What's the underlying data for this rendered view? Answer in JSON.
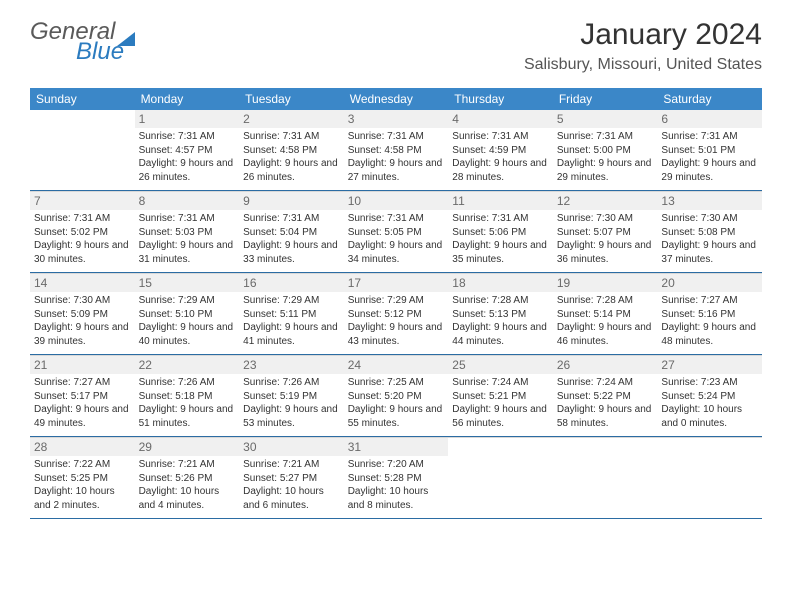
{
  "logo": {
    "general": "General",
    "blue": "Blue"
  },
  "title": "January 2024",
  "location": "Salisbury, Missouri, United States",
  "colors": {
    "header_bg": "#3b87c8",
    "header_fg": "#ffffff",
    "border": "#2b6ca3",
    "shaded": "#f0f0f0",
    "logo_blue": "#2b7bbf",
    "logo_gray": "#5a5a5a"
  },
  "day_names": [
    "Sunday",
    "Monday",
    "Tuesday",
    "Wednesday",
    "Thursday",
    "Friday",
    "Saturday"
  ],
  "weeks": [
    [
      {
        "day": "",
        "sunrise": "",
        "sunset": "",
        "daylight": ""
      },
      {
        "day": "1",
        "sunrise": "Sunrise: 7:31 AM",
        "sunset": "Sunset: 4:57 PM",
        "daylight": "Daylight: 9 hours and 26 minutes."
      },
      {
        "day": "2",
        "sunrise": "Sunrise: 7:31 AM",
        "sunset": "Sunset: 4:58 PM",
        "daylight": "Daylight: 9 hours and 26 minutes."
      },
      {
        "day": "3",
        "sunrise": "Sunrise: 7:31 AM",
        "sunset": "Sunset: 4:58 PM",
        "daylight": "Daylight: 9 hours and 27 minutes."
      },
      {
        "day": "4",
        "sunrise": "Sunrise: 7:31 AM",
        "sunset": "Sunset: 4:59 PM",
        "daylight": "Daylight: 9 hours and 28 minutes."
      },
      {
        "day": "5",
        "sunrise": "Sunrise: 7:31 AM",
        "sunset": "Sunset: 5:00 PM",
        "daylight": "Daylight: 9 hours and 29 minutes."
      },
      {
        "day": "6",
        "sunrise": "Sunrise: 7:31 AM",
        "sunset": "Sunset: 5:01 PM",
        "daylight": "Daylight: 9 hours and 29 minutes."
      }
    ],
    [
      {
        "day": "7",
        "sunrise": "Sunrise: 7:31 AM",
        "sunset": "Sunset: 5:02 PM",
        "daylight": "Daylight: 9 hours and 30 minutes."
      },
      {
        "day": "8",
        "sunrise": "Sunrise: 7:31 AM",
        "sunset": "Sunset: 5:03 PM",
        "daylight": "Daylight: 9 hours and 31 minutes."
      },
      {
        "day": "9",
        "sunrise": "Sunrise: 7:31 AM",
        "sunset": "Sunset: 5:04 PM",
        "daylight": "Daylight: 9 hours and 33 minutes."
      },
      {
        "day": "10",
        "sunrise": "Sunrise: 7:31 AM",
        "sunset": "Sunset: 5:05 PM",
        "daylight": "Daylight: 9 hours and 34 minutes."
      },
      {
        "day": "11",
        "sunrise": "Sunrise: 7:31 AM",
        "sunset": "Sunset: 5:06 PM",
        "daylight": "Daylight: 9 hours and 35 minutes."
      },
      {
        "day": "12",
        "sunrise": "Sunrise: 7:30 AM",
        "sunset": "Sunset: 5:07 PM",
        "daylight": "Daylight: 9 hours and 36 minutes."
      },
      {
        "day": "13",
        "sunrise": "Sunrise: 7:30 AM",
        "sunset": "Sunset: 5:08 PM",
        "daylight": "Daylight: 9 hours and 37 minutes."
      }
    ],
    [
      {
        "day": "14",
        "sunrise": "Sunrise: 7:30 AM",
        "sunset": "Sunset: 5:09 PM",
        "daylight": "Daylight: 9 hours and 39 minutes."
      },
      {
        "day": "15",
        "sunrise": "Sunrise: 7:29 AM",
        "sunset": "Sunset: 5:10 PM",
        "daylight": "Daylight: 9 hours and 40 minutes."
      },
      {
        "day": "16",
        "sunrise": "Sunrise: 7:29 AM",
        "sunset": "Sunset: 5:11 PM",
        "daylight": "Daylight: 9 hours and 41 minutes."
      },
      {
        "day": "17",
        "sunrise": "Sunrise: 7:29 AM",
        "sunset": "Sunset: 5:12 PM",
        "daylight": "Daylight: 9 hours and 43 minutes."
      },
      {
        "day": "18",
        "sunrise": "Sunrise: 7:28 AM",
        "sunset": "Sunset: 5:13 PM",
        "daylight": "Daylight: 9 hours and 44 minutes."
      },
      {
        "day": "19",
        "sunrise": "Sunrise: 7:28 AM",
        "sunset": "Sunset: 5:14 PM",
        "daylight": "Daylight: 9 hours and 46 minutes."
      },
      {
        "day": "20",
        "sunrise": "Sunrise: 7:27 AM",
        "sunset": "Sunset: 5:16 PM",
        "daylight": "Daylight: 9 hours and 48 minutes."
      }
    ],
    [
      {
        "day": "21",
        "sunrise": "Sunrise: 7:27 AM",
        "sunset": "Sunset: 5:17 PM",
        "daylight": "Daylight: 9 hours and 49 minutes."
      },
      {
        "day": "22",
        "sunrise": "Sunrise: 7:26 AM",
        "sunset": "Sunset: 5:18 PM",
        "daylight": "Daylight: 9 hours and 51 minutes."
      },
      {
        "day": "23",
        "sunrise": "Sunrise: 7:26 AM",
        "sunset": "Sunset: 5:19 PM",
        "daylight": "Daylight: 9 hours and 53 minutes."
      },
      {
        "day": "24",
        "sunrise": "Sunrise: 7:25 AM",
        "sunset": "Sunset: 5:20 PM",
        "daylight": "Daylight: 9 hours and 55 minutes."
      },
      {
        "day": "25",
        "sunrise": "Sunrise: 7:24 AM",
        "sunset": "Sunset: 5:21 PM",
        "daylight": "Daylight: 9 hours and 56 minutes."
      },
      {
        "day": "26",
        "sunrise": "Sunrise: 7:24 AM",
        "sunset": "Sunset: 5:22 PM",
        "daylight": "Daylight: 9 hours and 58 minutes."
      },
      {
        "day": "27",
        "sunrise": "Sunrise: 7:23 AM",
        "sunset": "Sunset: 5:24 PM",
        "daylight": "Daylight: 10 hours and 0 minutes."
      }
    ],
    [
      {
        "day": "28",
        "sunrise": "Sunrise: 7:22 AM",
        "sunset": "Sunset: 5:25 PM",
        "daylight": "Daylight: 10 hours and 2 minutes."
      },
      {
        "day": "29",
        "sunrise": "Sunrise: 7:21 AM",
        "sunset": "Sunset: 5:26 PM",
        "daylight": "Daylight: 10 hours and 4 minutes."
      },
      {
        "day": "30",
        "sunrise": "Sunrise: 7:21 AM",
        "sunset": "Sunset: 5:27 PM",
        "daylight": "Daylight: 10 hours and 6 minutes."
      },
      {
        "day": "31",
        "sunrise": "Sunrise: 7:20 AM",
        "sunset": "Sunset: 5:28 PM",
        "daylight": "Daylight: 10 hours and 8 minutes."
      },
      {
        "day": "",
        "sunrise": "",
        "sunset": "",
        "daylight": ""
      },
      {
        "day": "",
        "sunrise": "",
        "sunset": "",
        "daylight": ""
      },
      {
        "day": "",
        "sunrise": "",
        "sunset": "",
        "daylight": ""
      }
    ]
  ]
}
